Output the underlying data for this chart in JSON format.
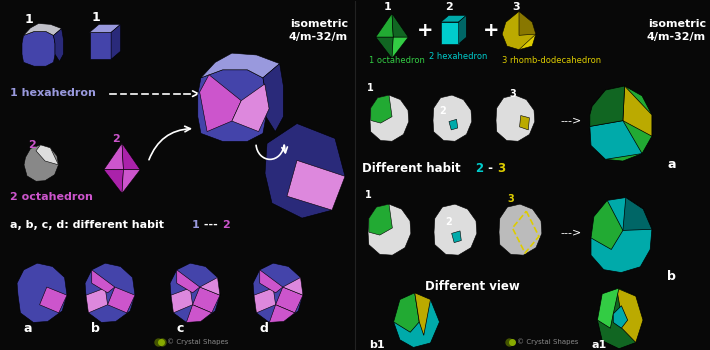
{
  "bg_color": "#080808",
  "title_left": "isometric\n4/m-32/m",
  "title_right": "isometric\n4/m-32/m",
  "label_hexahedron": "1 hexahedron",
  "label_octahedron": "2 octahedron",
  "label_habit": "a, b, c, d: different habit ",
  "label_habit_1": "1",
  "label_habit_dash": " --- ",
  "label_habit_2": "2",
  "label_diff_habit": "Different habit ",
  "label_diff_2": "2",
  "label_diff_3": "3",
  "label_diff_view": "Different view",
  "label_1oct": "1 octahedron",
  "label_2hex": "2 hexahedron",
  "label_3rhomb": "3 rhomb-dodecahedron",
  "labels_bottom_left": [
    "a",
    "b",
    "c",
    "d"
  ],
  "watermark": "Crystal Shapes",
  "colors": {
    "blue_dark": "#2a2a7a",
    "blue_mid": "#4444aa",
    "blue_med": "#5555bb",
    "blue_light": "#7777cc",
    "blue_pale": "#9999dd",
    "pink": "#cc55cc",
    "pink_light": "#dd88dd",
    "pink_dark": "#aa22aa",
    "gray": "#888888",
    "gray_light": "#bbbbbb",
    "gray_lighter": "#dddddd",
    "green_dark": "#116622",
    "green_mid": "#22aa33",
    "green_bright": "#33cc44",
    "teal_dark": "#006666",
    "teal": "#00aaaa",
    "teal_bright": "#00cccc",
    "yellow_dark": "#887700",
    "yellow": "#bbaa00",
    "yellow_bright": "#ddcc00",
    "white": "#ffffff",
    "silver": "#c0c0c8",
    "divider": "#222222"
  }
}
